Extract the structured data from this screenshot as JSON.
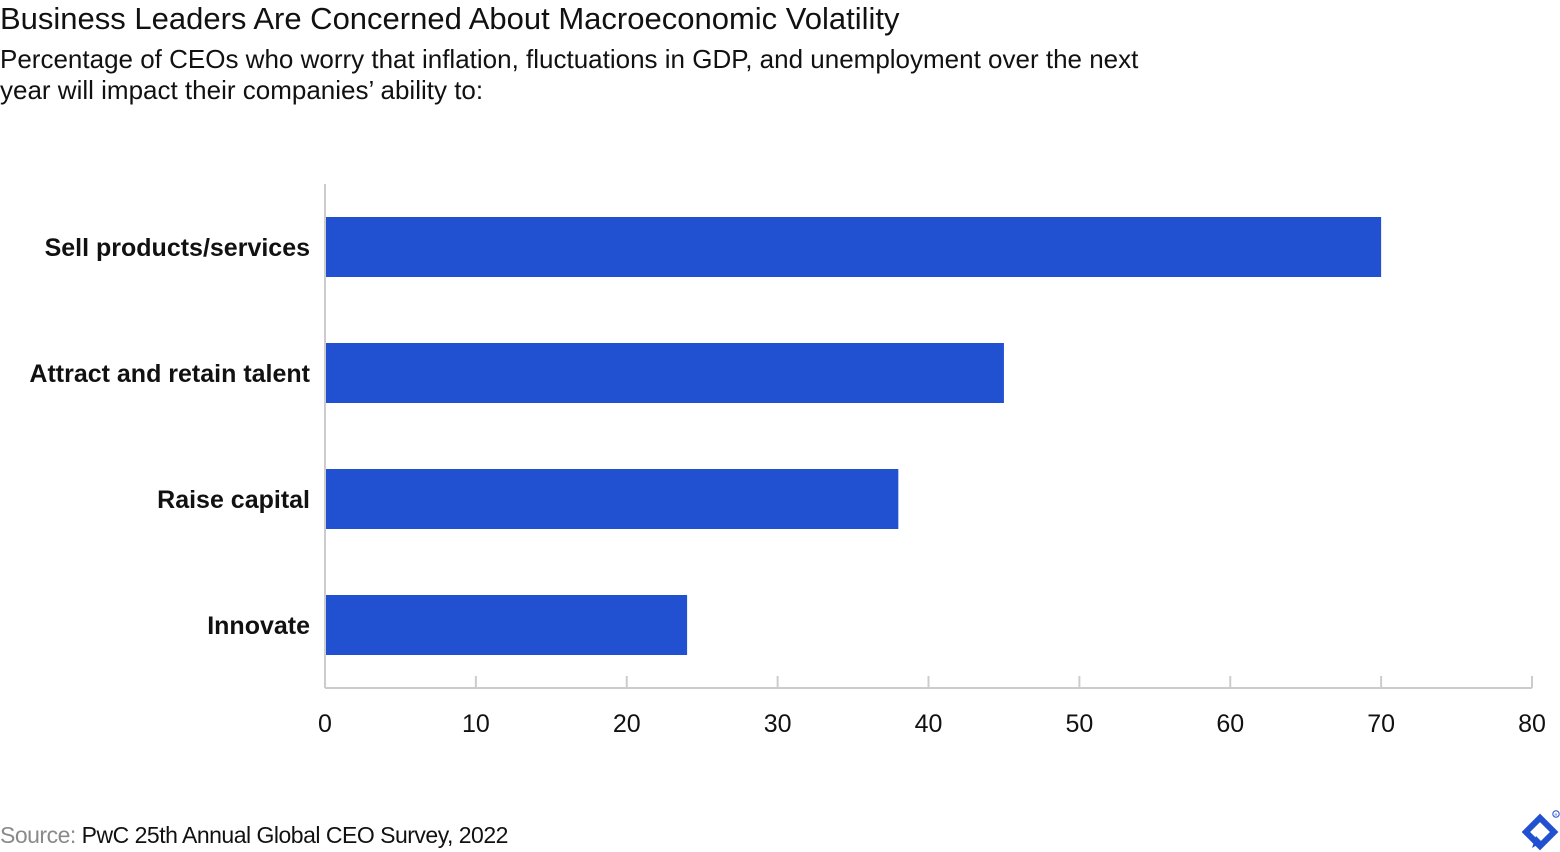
{
  "header": {
    "title": "Business Leaders Are Concerned About Macroeconomic Volatility",
    "subtitle": "Percentage of CEOs who worry that inflation, fluctuations in GDP, and unemployment over the next year will impact their companies’ ability to:"
  },
  "footer": {
    "source_label": "Source:",
    "source_text": "PwC 25th Annual Global CEO Survey, 2022",
    "logo_icon": "toptal-logo-icon"
  },
  "chart_data": {
    "type": "bar",
    "orientation": "horizontal",
    "categories": [
      "Sell products/services",
      "Attract and retain talent",
      "Raise capital",
      "Innovate"
    ],
    "values": [
      70,
      45,
      38,
      24
    ],
    "xlim": [
      0,
      80
    ],
    "xticks": [
      0,
      10,
      20,
      30,
      40,
      50,
      60,
      70,
      80
    ],
    "grid": false,
    "legend": "none",
    "colors": {
      "bar": "#2150D0",
      "axis": "#cccccc",
      "text": "#111111"
    }
  }
}
